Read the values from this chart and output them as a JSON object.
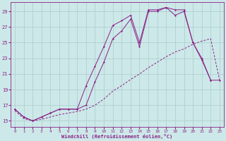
{
  "xlabel": "Windchill (Refroidissement éolien,°C)",
  "bg_color": "#cce8e8",
  "line_color": "#882288",
  "grid_color": "#aacccc",
  "xticks": [
    0,
    1,
    2,
    3,
    4,
    5,
    6,
    7,
    8,
    9,
    10,
    11,
    12,
    13,
    14,
    15,
    16,
    17,
    18,
    19,
    20,
    21,
    22,
    23
  ],
  "yticks": [
    15,
    17,
    19,
    21,
    23,
    25,
    27,
    29
  ],
  "ylim": [
    14.2,
    30.2
  ],
  "xlim": [
    -0.5,
    23.5
  ],
  "line1_x": [
    0,
    1,
    2,
    3,
    4,
    5,
    6,
    7,
    8,
    9,
    10,
    11,
    12,
    13,
    14,
    15,
    16,
    17,
    18,
    19,
    20,
    21,
    22
  ],
  "line1_y": [
    16.5,
    15.5,
    15.0,
    15.5,
    16.0,
    16.5,
    16.5,
    16.5,
    19.5,
    22.0,
    24.5,
    27.2,
    27.8,
    28.5,
    25.0,
    29.2,
    29.2,
    29.5,
    29.2,
    29.2,
    25.0,
    23.0,
    20.2
  ],
  "line2_x": [
    0,
    1,
    2,
    3,
    4,
    5,
    6,
    7,
    8,
    9,
    10,
    11,
    12,
    13,
    14,
    15,
    16,
    17,
    18,
    19,
    20,
    21,
    22,
    23
  ],
  "line2_y": [
    16.5,
    15.5,
    15.0,
    15.5,
    16.0,
    16.5,
    16.5,
    16.5,
    17.0,
    20.0,
    22.5,
    25.5,
    26.5,
    28.0,
    24.5,
    29.0,
    29.0,
    29.5,
    28.5,
    29.0,
    25.0,
    22.8,
    20.2,
    20.2
  ],
  "line3_x": [
    0,
    1,
    2,
    3,
    4,
    5,
    6,
    7,
    8,
    9,
    10,
    11,
    12,
    13,
    14,
    15,
    16,
    17,
    18,
    19,
    20,
    21,
    22,
    23
  ],
  "line3_y": [
    16.3,
    15.3,
    15.0,
    15.2,
    15.5,
    15.8,
    16.0,
    16.2,
    16.5,
    17.0,
    17.8,
    18.8,
    19.5,
    20.3,
    21.0,
    21.8,
    22.5,
    23.2,
    23.8,
    24.2,
    24.8,
    25.2,
    25.5,
    20.2
  ]
}
